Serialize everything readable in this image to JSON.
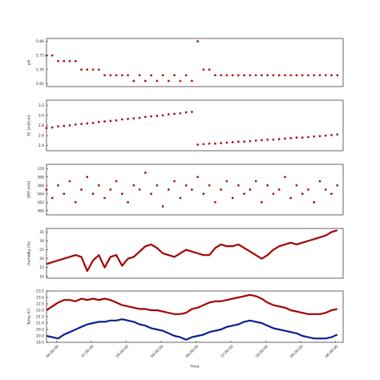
{
  "chart_data": [
    {
      "type": "scatter",
      "ylabel": "pH",
      "color": "#a50000",
      "x": [
        0,
        1,
        2,
        3,
        4,
        5,
        6,
        7,
        8,
        9,
        10,
        11,
        12,
        13,
        14,
        15,
        16,
        17,
        18,
        19,
        20,
        21,
        22,
        23,
        24,
        25,
        26,
        27,
        28,
        29,
        30,
        31,
        32,
        33,
        34,
        35,
        36,
        37,
        38,
        39,
        40,
        41,
        42,
        43,
        44,
        45,
        46,
        47,
        48,
        49,
        50
      ],
      "values": [
        5.75,
        5.75,
        5.73,
        5.73,
        5.73,
        5.73,
        5.7,
        5.7,
        5.7,
        5.7,
        5.68,
        5.68,
        5.68,
        5.68,
        5.68,
        5.66,
        5.68,
        5.66,
        5.68,
        5.66,
        5.68,
        5.66,
        5.68,
        5.66,
        5.68,
        5.66,
        5.8,
        5.7,
        5.7,
        5.68,
        5.68,
        5.68,
        5.68,
        5.68,
        5.68,
        5.68,
        5.68,
        5.68,
        5.68,
        5.68,
        5.68,
        5.68,
        5.68,
        5.68,
        5.68,
        5.68,
        5.68,
        5.68,
        5.68,
        5.68,
        5.68
      ],
      "xlim": [
        0,
        51
      ],
      "ylim": [
        5.64,
        5.81
      ],
      "yticks": [
        5.65,
        {
          "value": 5.7,
          "label": "5.70"
        },
        5.75,
        {
          "value": 5.8,
          "label": "5.80"
        }
      ]
    },
    {
      "type": "scatter",
      "ylabel": "EC (mS/cm)",
      "color": "#a50000",
      "x": [
        0,
        1,
        2,
        3,
        4,
        5,
        6,
        7,
        8,
        9,
        10,
        11,
        12,
        13,
        14,
        15,
        16,
        17,
        18,
        19,
        20,
        21,
        22,
        23,
        24,
        25,
        26,
        27,
        28,
        29,
        30,
        31,
        32,
        33,
        34,
        35,
        36,
        37,
        38,
        39,
        40,
        41,
        42,
        43,
        44,
        45,
        46,
        47,
        48,
        49,
        50
      ],
      "values": [
        2.75,
        2.76,
        2.78,
        2.79,
        2.8,
        2.82,
        2.83,
        2.84,
        2.85,
        2.87,
        2.88,
        2.89,
        2.9,
        2.92,
        2.93,
        2.94,
        2.95,
        2.97,
        2.98,
        2.99,
        3.0,
        3.02,
        3.03,
        3.04,
        3.06,
        3.07,
        2.42,
        2.43,
        2.44,
        2.44,
        2.45,
        2.46,
        2.47,
        2.48,
        2.48,
        2.49,
        2.5,
        2.51,
        2.52,
        2.52,
        2.53,
        2.54,
        2.55,
        2.56,
        2.56,
        2.57,
        2.58,
        2.59,
        2.6,
        2.61,
        2.62
      ],
      "xlim": [
        0,
        51
      ],
      "ylim": [
        2.3,
        3.3
      ],
      "yticks": [
        2.4,
        2.6,
        2.8,
        {
          "value": 3,
          "label": "3.0"
        },
        3.2
      ]
    },
    {
      "type": "scatter",
      "ylabel": "ORP (mV)",
      "color": "#a50000",
      "x": [
        0,
        1,
        2,
        3,
        4,
        5,
        6,
        7,
        8,
        9,
        10,
        11,
        12,
        13,
        14,
        15,
        16,
        17,
        18,
        19,
        20,
        21,
        22,
        23,
        24,
        25,
        26,
        27,
        28,
        29,
        30,
        31,
        32,
        33,
        34,
        35,
        36,
        37,
        38,
        39,
        40,
        41,
        42,
        43,
        44,
        45,
        46,
        47,
        48,
        49,
        50
      ],
      "values": [
        365,
        363,
        366,
        364,
        367,
        362,
        365,
        368,
        364,
        366,
        363,
        365,
        367,
        364,
        362,
        366,
        365,
        369,
        364,
        366,
        361,
        365,
        367,
        363,
        366,
        365,
        368,
        364,
        366,
        362,
        365,
        367,
        363,
        366,
        364,
        365,
        367,
        362,
        366,
        364,
        365,
        368,
        363,
        366,
        364,
        365,
        362,
        367,
        365,
        364,
        366
      ],
      "xlim": [
        0,
        51
      ],
      "ylim": [
        359,
        371
      ],
      "yticks": [
        360,
        362,
        364,
        366,
        368,
        370
      ]
    },
    {
      "type": "line",
      "ylabel": "Humidity (%)",
      "color": "#a50000",
      "x": [
        0,
        1,
        2,
        3,
        4,
        5,
        6,
        7,
        8,
        9,
        10,
        11,
        12,
        13,
        14,
        15,
        16,
        17,
        18,
        19,
        20,
        21,
        22,
        23,
        24,
        25,
        26,
        27,
        28,
        29,
        30,
        31,
        32,
        33,
        34,
        35,
        36,
        37,
        38,
        39,
        40,
        41,
        42,
        43,
        44,
        45,
        46,
        47,
        48,
        49,
        50
      ],
      "values": [
        17,
        18,
        19,
        20,
        21,
        22,
        21,
        13,
        19,
        22,
        15,
        21,
        22,
        16,
        20,
        21,
        24,
        27,
        28,
        26,
        23,
        22,
        21,
        23,
        25,
        24,
        23,
        22,
        22,
        26,
        28,
        27,
        27,
        28,
        26,
        24,
        22,
        20,
        22,
        25,
        27,
        28,
        29,
        28,
        29,
        30,
        31,
        32,
        33,
        35,
        36
      ],
      "xlim": [
        0,
        51
      ],
      "ylim": [
        9,
        37
      ],
      "yticks": [
        10,
        15,
        20,
        25,
        30,
        35
      ]
    },
    {
      "type": "line",
      "ylabel": "Temp (C)",
      "xlabel": "Time",
      "x": [
        0,
        1,
        2,
        3,
        4,
        5,
        6,
        7,
        8,
        9,
        10,
        11,
        12,
        13,
        14,
        15,
        16,
        17,
        18,
        19,
        20,
        21,
        22,
        23,
        24,
        25,
        26,
        27,
        28,
        29,
        30,
        31,
        32,
        33,
        34,
        35,
        36,
        37,
        38,
        39,
        40,
        41,
        42,
        43,
        44,
        45,
        46,
        47,
        48,
        49,
        50
      ],
      "series": [
        {
          "color": "#a50000",
          "values": [
            22.0,
            22.3,
            22.6,
            22.8,
            22.8,
            22.7,
            22.9,
            22.8,
            22.9,
            22.8,
            22.9,
            22.8,
            22.6,
            22.4,
            22.3,
            22.2,
            22.1,
            22.1,
            22.0,
            22.0,
            21.9,
            21.8,
            21.7,
            21.7,
            21.8,
            22.1,
            22.2,
            22.4,
            22.6,
            22.7,
            22.7,
            22.8,
            22.9,
            23.0,
            23.1,
            23.2,
            23.1,
            22.9,
            22.6,
            22.4,
            22.3,
            22.2,
            22.0,
            21.9,
            21.8,
            21.7,
            21.7,
            21.7,
            21.8,
            22.0,
            22.1
          ]
        },
        {
          "color": "#0a1f8f",
          "values": [
            20.0,
            19.9,
            19.8,
            20.1,
            20.3,
            20.5,
            20.7,
            20.9,
            21.0,
            21.1,
            21.1,
            21.2,
            21.2,
            21.3,
            21.2,
            21.1,
            20.9,
            20.8,
            20.6,
            20.5,
            20.4,
            20.2,
            20.0,
            19.9,
            19.7,
            19.9,
            20.0,
            20.1,
            20.3,
            20.4,
            20.5,
            20.7,
            20.8,
            20.9,
            21.1,
            21.2,
            21.1,
            21.0,
            20.8,
            20.6,
            20.5,
            20.4,
            20.3,
            20.2,
            20.0,
            19.9,
            19.8,
            19.8,
            19.8,
            19.9,
            20.1
          ]
        }
      ],
      "xlim": [
        0,
        51
      ],
      "ylim": [
        19.5,
        23.5
      ],
      "yticks": [
        19.5,
        {
          "value": 20,
          "label": "20.0"
        },
        20.5,
        {
          "value": 21,
          "label": "21.0"
        },
        21.5,
        {
          "value": 22,
          "label": "22.0"
        },
        22.5,
        {
          "value": 23,
          "label": "23.0"
        },
        23.5
      ],
      "xticks": [
        {
          "value": 1.7,
          "label": "06:00:00"
        },
        {
          "value": 7.7,
          "label": "12:00:00"
        },
        {
          "value": 13.7,
          "label": "18:00:00"
        },
        {
          "value": 19.7,
          "label": "00:00:00"
        },
        {
          "value": 25.7,
          "label": "06:00:00"
        },
        {
          "value": 31.7,
          "label": "12:00:00"
        },
        {
          "value": 37.7,
          "label": "18:00:00"
        },
        {
          "value": 43.7,
          "label": "00:00:00"
        },
        {
          "value": 49.7,
          "label": "06:00:00"
        }
      ]
    }
  ]
}
